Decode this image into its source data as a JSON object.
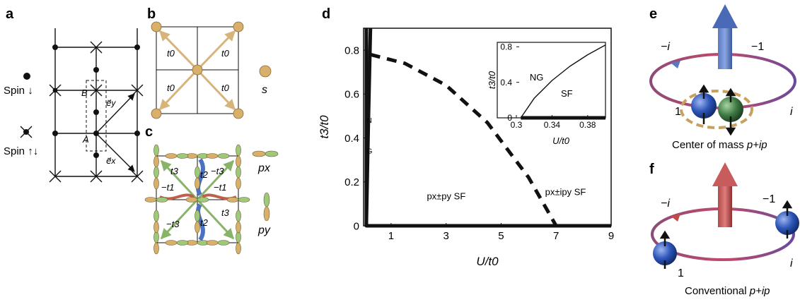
{
  "panels": {
    "a": {
      "label": "a",
      "spin_down": "Spin ↓",
      "spin_updown": "Spin ↑↓",
      "site_A": "A",
      "site_B": "B",
      "vec_ey": "e⃗y",
      "vec_ex": "e⃗x"
    },
    "b": {
      "label": "b",
      "hop": "t0",
      "orbital": "s"
    },
    "c": {
      "label": "c",
      "t3": "t3",
      "neg_t3": "−t3",
      "t2": "t2",
      "neg_t1": "−t1",
      "px": "px",
      "py": "py"
    },
    "d": {
      "label": "d"
    },
    "e": {
      "label": "e",
      "phase_neg_i": "−i",
      "phase_neg_one": "−1",
      "phase_one": "1",
      "phase_i": "i",
      "caption_text": "Center of mass ",
      "caption_italic": "p+ip"
    },
    "f": {
      "label": "f",
      "phase_neg_i": "−i",
      "phase_neg_one": "−1",
      "phase_one": "1",
      "phase_i": "i",
      "caption_text": "Conventional ",
      "caption_italic": "p+ip"
    }
  },
  "chart_data": [
    {
      "type": "line",
      "panel": "d",
      "xlabel": "U/t0",
      "ylabel": "t3/t0",
      "xlim": [
        0,
        9
      ],
      "ylim": [
        0,
        0.9
      ],
      "xticks": [
        1,
        3,
        5,
        7,
        9
      ],
      "yticks": [
        0,
        0.2,
        0.4,
        0.6,
        0.8
      ],
      "series": [
        {
          "style": "solid",
          "x": [
            0.1,
            0.1,
            9
          ],
          "y": [
            0.9,
            0,
            0
          ]
        },
        {
          "style": "solid",
          "x": [
            0.25,
            0.17,
            0.1
          ],
          "y": [
            0.9,
            0.45,
            0
          ]
        },
        {
          "style": "dashed",
          "x": [
            0.25,
            1.5,
            3,
            4.5,
            6.0,
            7.0
          ],
          "y": [
            0.78,
            0.74,
            0.64,
            0.47,
            0.22,
            0.0
          ]
        }
      ],
      "regions": [
        {
          "text": "N"
        },
        {
          "text": "G"
        },
        {
          "text": "px±py  SF"
        },
        {
          "text": "px±ipy  SF"
        }
      ]
    },
    {
      "type": "line",
      "panel": "d-inset",
      "xlabel": "U/t0",
      "ylabel": "t3/t0",
      "xlim": [
        0.3,
        0.4
      ],
      "ylim": [
        0,
        0.85
      ],
      "xticks": [
        0.3,
        0.34,
        0.38
      ],
      "yticks": [
        0,
        0.4,
        0.8
      ],
      "series": [
        {
          "style": "solid",
          "x": [
            0.305,
            0.32,
            0.34,
            0.36,
            0.38,
            0.4
          ],
          "y": [
            0,
            0.22,
            0.42,
            0.58,
            0.71,
            0.82
          ]
        },
        {
          "style": "solid",
          "x": [
            0.305,
            0.4
          ],
          "y": [
            0,
            0
          ]
        }
      ],
      "regions": [
        {
          "text": "NG"
        },
        {
          "text": "SF"
        }
      ]
    }
  ]
}
